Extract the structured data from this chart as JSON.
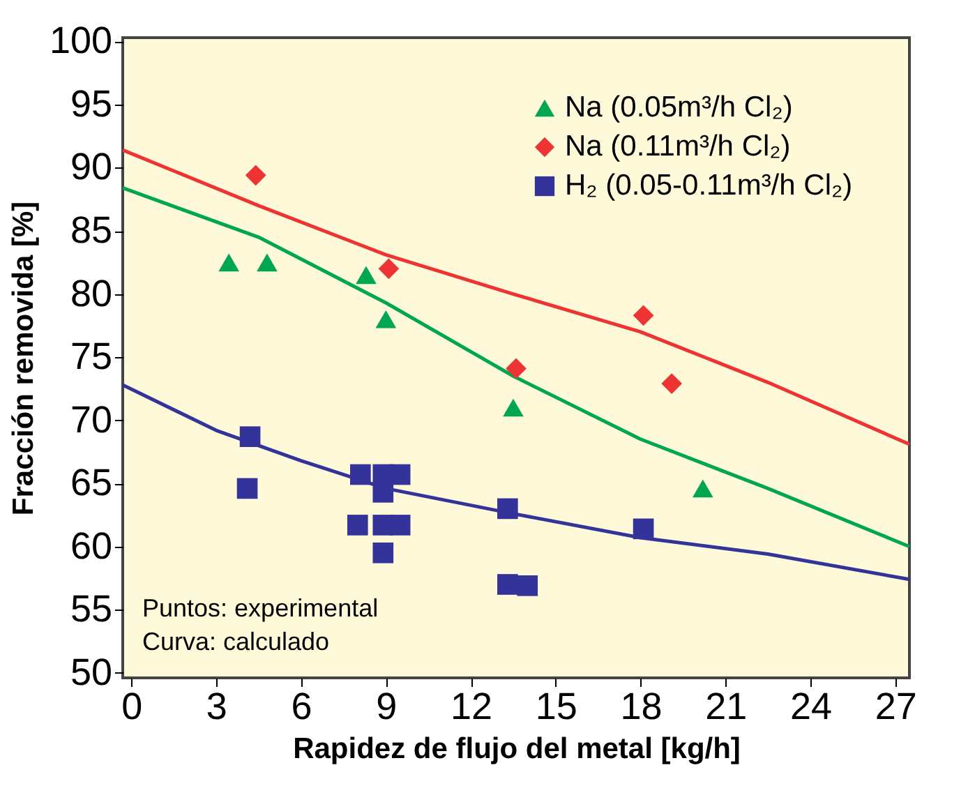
{
  "chart_data": {
    "type": "scatter",
    "xlabel": "Rapidez de flujo del metal [kg/h]",
    "ylabel": "Fracción removida [%]",
    "xlim": [
      -0.3,
      27.5
    ],
    "ylim": [
      49.6,
      100.3
    ],
    "xticks": [
      0,
      3,
      6,
      9,
      12,
      15,
      18,
      21,
      24,
      27
    ],
    "yticks": [
      50,
      55,
      60,
      65,
      70,
      75,
      80,
      85,
      90,
      95,
      100
    ],
    "grid": false,
    "legend": "top right",
    "annotations": [
      "Puntos: experimental",
      "Curva: calculado"
    ],
    "series": [
      {
        "type": "line",
        "color": "#ee3333",
        "x": [
          -0.3,
          4.5,
          9,
          13.5,
          18,
          22.5,
          27.5
        ],
        "values": [
          91.4,
          87,
          83.1,
          80,
          77,
          73,
          68.1
        ]
      },
      {
        "type": "line",
        "color": "#00a651",
        "x": [
          -0.3,
          4.5,
          9,
          13.5,
          18,
          22.5,
          27.5
        ],
        "values": [
          88.4,
          84.5,
          79.3,
          73.5,
          68.5,
          64.6,
          60
        ]
      },
      {
        "type": "line",
        "color": "#333399",
        "x": [
          -0.3,
          3,
          6,
          9,
          13.5,
          18,
          22.5,
          27.5
        ],
        "values": [
          72.8,
          69.2,
          66.8,
          64.6,
          62.6,
          60.7,
          59.4,
          57.4
        ]
      },
      {
        "name": "Na (0.05m³/h Cl₂)",
        "color": "#00a651",
        "marker": "triangle",
        "x": [
          3.45,
          4.8,
          8.3,
          9.0,
          13.5,
          20.2
        ],
        "values": [
          82.5,
          82.5,
          81.5,
          78,
          71,
          64.6
        ]
      },
      {
        "name": "Na (0.11m³/h Cl₂)",
        "color": "#ee3333",
        "marker": "diamond",
        "x": [
          4.4,
          9.1,
          13.6,
          18.1,
          19.1
        ],
        "values": [
          89.4,
          82,
          74.1,
          78.3,
          72.9
        ]
      },
      {
        "name": "H₂ (0.05-0.11m³/h Cl₂)",
        "color": "#333399",
        "marker": "square",
        "x": [
          4.2,
          4.1,
          8.1,
          8.9,
          9.5,
          8.9,
          8.0,
          8.9,
          9.5,
          8.9,
          13.3,
          13.3,
          14.0,
          18.1
        ],
        "values": [
          68.7,
          64.6,
          65.7,
          65.7,
          65.7,
          64.3,
          61.7,
          61.7,
          61.7,
          59.5,
          63,
          57,
          56.9,
          61.4
        ]
      }
    ]
  }
}
